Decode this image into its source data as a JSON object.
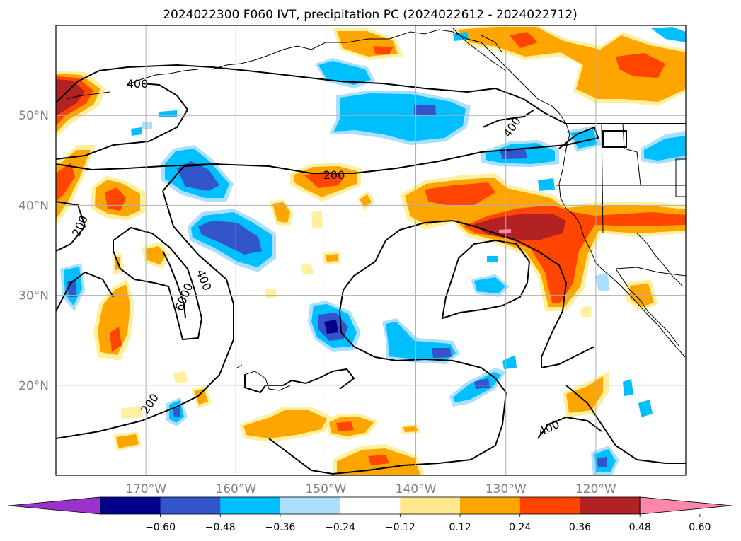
{
  "title": "2024022300 F060 IVT, precipitation PC (2024022612 - 2024022712)",
  "map": {
    "lon_range": [
      -180,
      -110
    ],
    "lat_range": [
      10,
      60
    ],
    "lat_labels": [
      {
        "lat": 50,
        "text": "50°N"
      },
      {
        "lat": 40,
        "text": "40°N"
      },
      {
        "lat": 30,
        "text": "30°N"
      },
      {
        "lat": 20,
        "text": "20°N"
      }
    ],
    "lon_labels": [
      {
        "lon": -170,
        "text": "170°W"
      },
      {
        "lon": -160,
        "text": "160°W"
      },
      {
        "lon": -150,
        "text": "150°W"
      },
      {
        "lon": -140,
        "text": "140°W"
      },
      {
        "lon": -130,
        "text": "130°W"
      },
      {
        "lon": -120,
        "text": "120°W"
      }
    ],
    "grid": true
  },
  "colorbar": {
    "colors": [
      "#9933cc",
      "#00008b",
      "#3355cc",
      "#00bfff",
      "#aadfff",
      "#ffffff",
      "#ffe98c",
      "#ffa500",
      "#ff4500",
      "#b22222",
      "#ff88aa"
    ],
    "tick_labels": [
      "−0.60",
      "−0.48",
      "−0.36",
      "−0.24",
      "−0.12",
      "0.12",
      "0.24",
      "0.36",
      "0.48",
      "0.60"
    ]
  },
  "ivt_labels": [
    "400",
    "400",
    "200",
    "200",
    "400",
    "6000",
    "200",
    "400"
  ],
  "colors": {
    "very_light_yellow": "#fff0a0",
    "orange": "#ffa500",
    "red_orange": "#ff4500",
    "dark_red": "#b22222",
    "pink": "#ff88aa",
    "light_blue": "#aadfff",
    "sky_blue": "#00bfff",
    "royal_blue": "#3355cc",
    "navy": "#00008b"
  }
}
